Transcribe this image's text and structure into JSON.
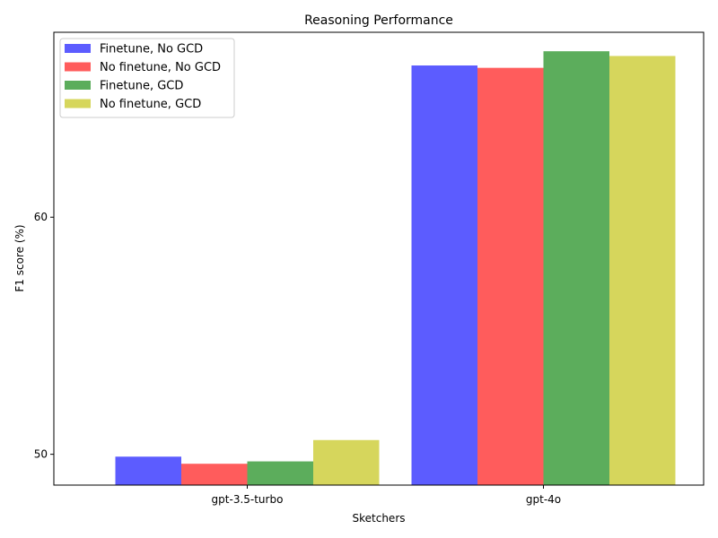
{
  "chart_data": {
    "type": "bar",
    "title": "Reasoning Performance",
    "xlabel": "Sketchers",
    "ylabel": "F1 score (%)",
    "categories": [
      "gpt-3.5-turbo",
      "gpt-4o"
    ],
    "ylim": [
      48.7,
      67.8
    ],
    "yticks": [
      50,
      60
    ],
    "grid": false,
    "legend_position": "top-left",
    "series": [
      {
        "name": "Finetune, No GCD",
        "color": "#3333ff",
        "values": [
          49.9,
          66.4
        ]
      },
      {
        "name": "No finetune, No GCD",
        "color": "#ff3333",
        "values": [
          49.6,
          66.3
        ]
      },
      {
        "name": "Finetune, GCD",
        "color": "#339933",
        "values": [
          49.7,
          67.0
        ]
      },
      {
        "name": "No finetune, GCD",
        "color": "#cccc33",
        "values": [
          50.6,
          66.8
        ]
      }
    ]
  }
}
